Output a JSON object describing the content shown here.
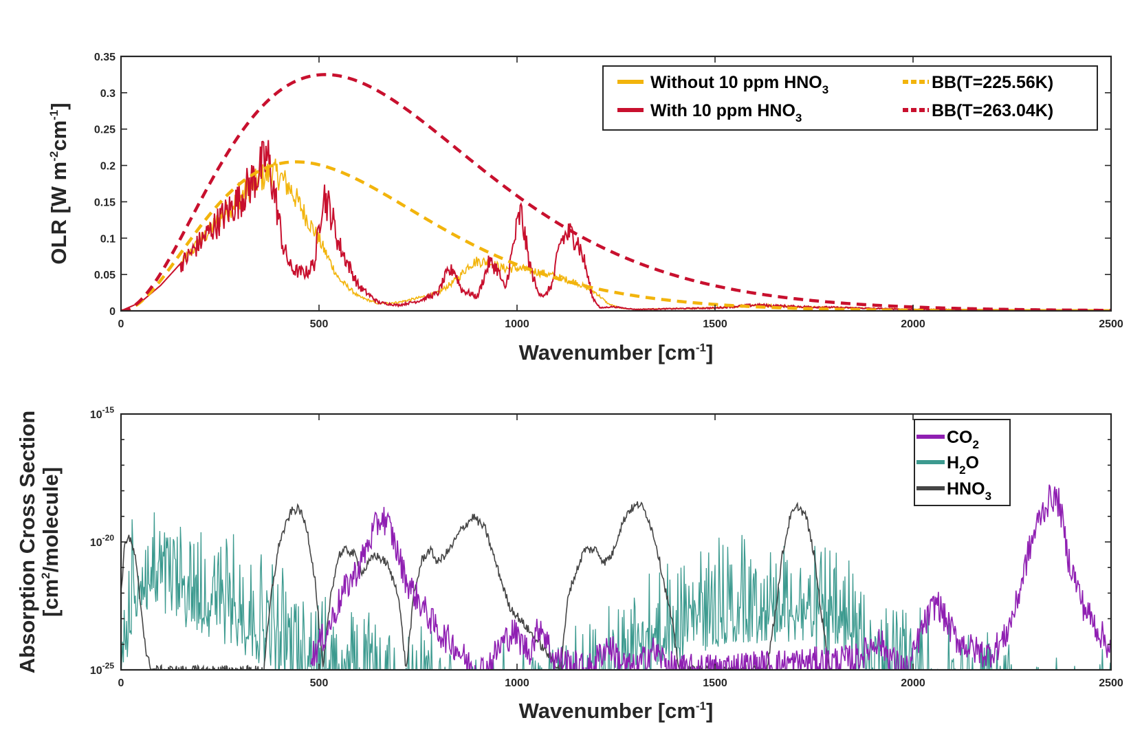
{
  "chart_data": [
    {
      "type": "line",
      "title": "",
      "xlabel": "Wavenumber [cm",
      "xlabel_sup": "-1",
      "xlabel_end": "]",
      "ylabel": "OLR [W m",
      "ylabel_sup1": "-2",
      "ylabel_mid": "cm",
      "ylabel_sup2": "-1",
      "ylabel_end": "]",
      "xlim": [
        0,
        2500
      ],
      "ylim": [
        0,
        0.35
      ],
      "xticks": [
        0,
        500,
        1000,
        1500,
        2000,
        2500
      ],
      "xtick_labels": [
        "0",
        "500",
        "1000",
        "1500",
        "2000",
        "2500"
      ],
      "yticks": [
        0,
        0.05,
        0.1,
        0.15,
        0.2,
        0.25,
        0.3,
        0.35
      ],
      "ytick_labels": [
        "0",
        "0.05",
        "0.1",
        "0.15",
        "0.2",
        "0.25",
        "0.3",
        "0.35"
      ],
      "legend_position": "top-right",
      "series": [
        {
          "name": "Without 10 ppm HNO3",
          "label": "Without 10 ppm HNO",
          "label_sub": "3",
          "color": "#F2B40C",
          "style": "solid",
          "x": [
            0,
            50,
            100,
            150,
            200,
            250,
            300,
            350,
            380,
            400,
            430,
            460,
            500,
            550,
            600,
            650,
            700,
            750,
            800,
            850,
            880,
            900,
            930,
            960,
            1000,
            1050,
            1100,
            1150,
            1200,
            1230,
            1260,
            1300,
            1500,
            1600,
            1700,
            2000,
            2500
          ],
          "y": [
            0,
            0.012,
            0.035,
            0.065,
            0.098,
            0.13,
            0.16,
            0.185,
            0.195,
            0.19,
            0.17,
            0.14,
            0.1,
            0.045,
            0.02,
            0.01,
            0.012,
            0.018,
            0.025,
            0.045,
            0.065,
            0.07,
            0.068,
            0.06,
            0.06,
            0.055,
            0.048,
            0.04,
            0.025,
            0.01,
            0.004,
            0.002,
            0.004,
            0.008,
            0.006,
            0.002,
            0.001
          ]
        },
        {
          "name": "With 10 ppm HNO3",
          "label": "With 10 ppm HNO",
          "label_sub": "3",
          "color": "#C8102E",
          "style": "solid",
          "x": [
            0,
            50,
            100,
            150,
            200,
            250,
            300,
            350,
            370,
            390,
            410,
            430,
            450,
            470,
            490,
            510,
            530,
            550,
            600,
            650,
            700,
            750,
            800,
            820,
            840,
            860,
            900,
            930,
            950,
            970,
            1000,
            1010,
            1030,
            1050,
            1070,
            1090,
            1110,
            1130,
            1150,
            1170,
            1190,
            1210,
            1240,
            1300,
            1500,
            1600,
            1700,
            2000,
            2500
          ],
          "y": [
            0,
            0.012,
            0.035,
            0.065,
            0.098,
            0.13,
            0.16,
            0.2,
            0.22,
            0.16,
            0.09,
            0.06,
            0.055,
            0.055,
            0.07,
            0.17,
            0.14,
            0.095,
            0.035,
            0.012,
            0.008,
            0.014,
            0.025,
            0.05,
            0.06,
            0.03,
            0.02,
            0.07,
            0.06,
            0.03,
            0.12,
            0.14,
            0.07,
            0.03,
            0.02,
            0.04,
            0.1,
            0.11,
            0.105,
            0.07,
            0.02,
            0.004,
            0.006,
            0.002,
            0.004,
            0.008,
            0.006,
            0.002,
            0.001
          ]
        },
        {
          "name": "BB(T=225.56K)",
          "label": "BB(T=225.56K)",
          "color": "#F2B40C",
          "style": "dashed",
          "temperature_K": 225.56
        },
        {
          "name": "BB(T=263.04K)",
          "label": "BB(T=263.04K)",
          "color": "#C8102E",
          "style": "dashed",
          "temperature_K": 263.04
        }
      ]
    },
    {
      "type": "line",
      "title": "",
      "xlabel": "Wavenumber [cm",
      "xlabel_sup": "-1",
      "xlabel_end": "]",
      "ylabel_line1": "Absorption Cross Section",
      "ylabel_line2": "[cm",
      "ylabel_line2_sup": "2",
      "ylabel_line2_end": "/molecule]",
      "yscale": "log",
      "xlim": [
        0,
        2500
      ],
      "ylim_exponent": [
        -25,
        -15
      ],
      "xticks": [
        0,
        500,
        1000,
        1500,
        2000,
        2500
      ],
      "xtick_labels": [
        "0",
        "500",
        "1000",
        "1500",
        "2000",
        "2500"
      ],
      "ytick_exponents": [
        -25,
        -20,
        -15
      ],
      "ytick_base": "10",
      "ytick_sups": [
        "-25",
        "-20",
        "-15"
      ],
      "legend_position": "top-right",
      "series": [
        {
          "name": "CO2",
          "label": "CO",
          "label_sub": "2",
          "color": "#8F1FB2",
          "x": [
            480,
            520,
            560,
            600,
            640,
            660,
            680,
            700,
            720,
            760,
            800,
            840,
            880,
            920,
            960,
            990,
            1030,
            1060,
            1090,
            1180,
            1230,
            1270,
            1300,
            1340,
            1370,
            1400,
            1850,
            1880,
            1910,
            1930,
            1960,
            1990,
            2020,
            2060,
            2080,
            2110,
            2150,
            2190,
            2230,
            2260,
            2290,
            2320,
            2350,
            2370,
            2390,
            2430,
            2470,
            2500
          ],
          "log10y": [
            -24.5,
            -23.5,
            -22,
            -21,
            -19.5,
            -19,
            -19.5,
            -20.5,
            -21.5,
            -22.5,
            -23.5,
            -24,
            -24.8,
            -25,
            -24,
            -23.5,
            -24.3,
            -23.2,
            -24.5,
            -25,
            -24,
            -24.8,
            -25,
            -24.2,
            -24.6,
            -25,
            -24.6,
            -24.3,
            -23.8,
            -24.2,
            -24.8,
            -25,
            -23.5,
            -22.3,
            -23,
            -23.8,
            -24.2,
            -24.4,
            -23.8,
            -22.5,
            -20.5,
            -19,
            -18.2,
            -18.5,
            -20.5,
            -22.5,
            -23.5,
            -24.2
          ]
        },
        {
          "name": "H2O",
          "label": "H",
          "label_sub": "2",
          "label_end": "O",
          "color": "#3C9A8F",
          "x": [
            0,
            30,
            60,
            100,
            150,
            200,
            250,
            300,
            350,
            400,
            450,
            500,
            550,
            600,
            650,
            700,
            750,
            800,
            850,
            900,
            950,
            1000,
            1050,
            1100,
            1150,
            1200,
            1250,
            1300,
            1350,
            1400,
            1450,
            1500,
            1550,
            1600,
            1650,
            1700,
            1750,
            1800,
            1850,
            1900,
            1950,
            2000,
            2050,
            2100,
            2150,
            2200,
            2300,
            2400,
            2500
          ],
          "log10y": [
            -23,
            -19.8,
            -19.5,
            -19.5,
            -19.8,
            -20.1,
            -20.4,
            -20.8,
            -21.3,
            -21.8,
            -22.3,
            -22.7,
            -23,
            -23.3,
            -23.6,
            -23.9,
            -24.1,
            -24.3,
            -24.5,
            -24.7,
            -24.7,
            -24.6,
            -24.4,
            -24.1,
            -23.7,
            -23.2,
            -22.7,
            -22.2,
            -21.7,
            -21.3,
            -21,
            -20.7,
            -20.5,
            -20.5,
            -20.4,
            -20.5,
            -20.8,
            -21.2,
            -21.7,
            -22.2,
            -22.7,
            -23.1,
            -23.5,
            -23.9,
            -24.2,
            -24.5,
            -24.8,
            -25,
            -25
          ]
        },
        {
          "name": "HNO3",
          "label": "HNO",
          "label_sub": "3",
          "color": "#454545",
          "x": [
            0,
            10,
            20,
            35,
            50,
            65,
            80,
            360,
            380,
            400,
            430,
            450,
            470,
            490,
            510,
            530,
            550,
            570,
            590,
            610,
            640,
            670,
            700,
            720,
            740,
            760,
            780,
            800,
            830,
            860,
            890,
            920,
            950,
            980,
            1110,
            1130,
            1170,
            1200,
            1220,
            1240,
            1260,
            1280,
            1310,
            1330,
            1350,
            1370,
            1390,
            1410,
            1630,
            1650,
            1670,
            1690,
            1710,
            1730,
            1750,
            1770,
            1790
          ],
          "log10y": [
            -22,
            -20,
            -19.8,
            -20.5,
            -22.5,
            -24.5,
            -25,
            -25,
            -22,
            -20,
            -18.8,
            -18.7,
            -19.5,
            -21.5,
            -25,
            -22,
            -20.5,
            -20.3,
            -20.5,
            -21.2,
            -20.5,
            -20.8,
            -22,
            -25,
            -22,
            -20.7,
            -20.3,
            -20.8,
            -20.3,
            -19.5,
            -19,
            -19.5,
            -21,
            -22.5,
            -25,
            -22,
            -20.3,
            -20.3,
            -20.8,
            -20.5,
            -19.5,
            -18.8,
            -18.5,
            -19,
            -20,
            -21.5,
            -23,
            -25,
            -25,
            -23,
            -20.5,
            -19,
            -18.6,
            -19,
            -20.5,
            -23,
            -25
          ]
        }
      ]
    }
  ]
}
